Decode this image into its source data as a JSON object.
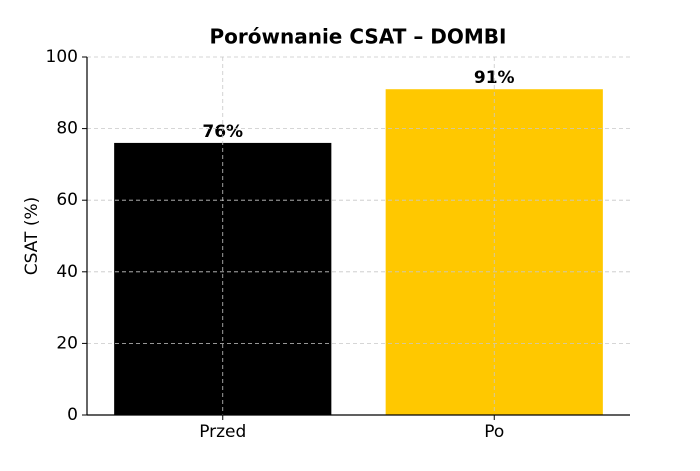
{
  "chart_data": {
    "type": "bar",
    "title": "Porównanie CSAT – DOMBI",
    "y_label": "CSAT (%)",
    "categories": [
      "Przed",
      "Po"
    ],
    "values": [
      76,
      91
    ],
    "value_labels": [
      "76%",
      "91%"
    ],
    "colors": [
      "#000000",
      "#ffc800"
    ],
    "ylim": [
      0,
      100
    ],
    "yticks": [
      0,
      20,
      40,
      60,
      80,
      100
    ],
    "grid": true
  }
}
